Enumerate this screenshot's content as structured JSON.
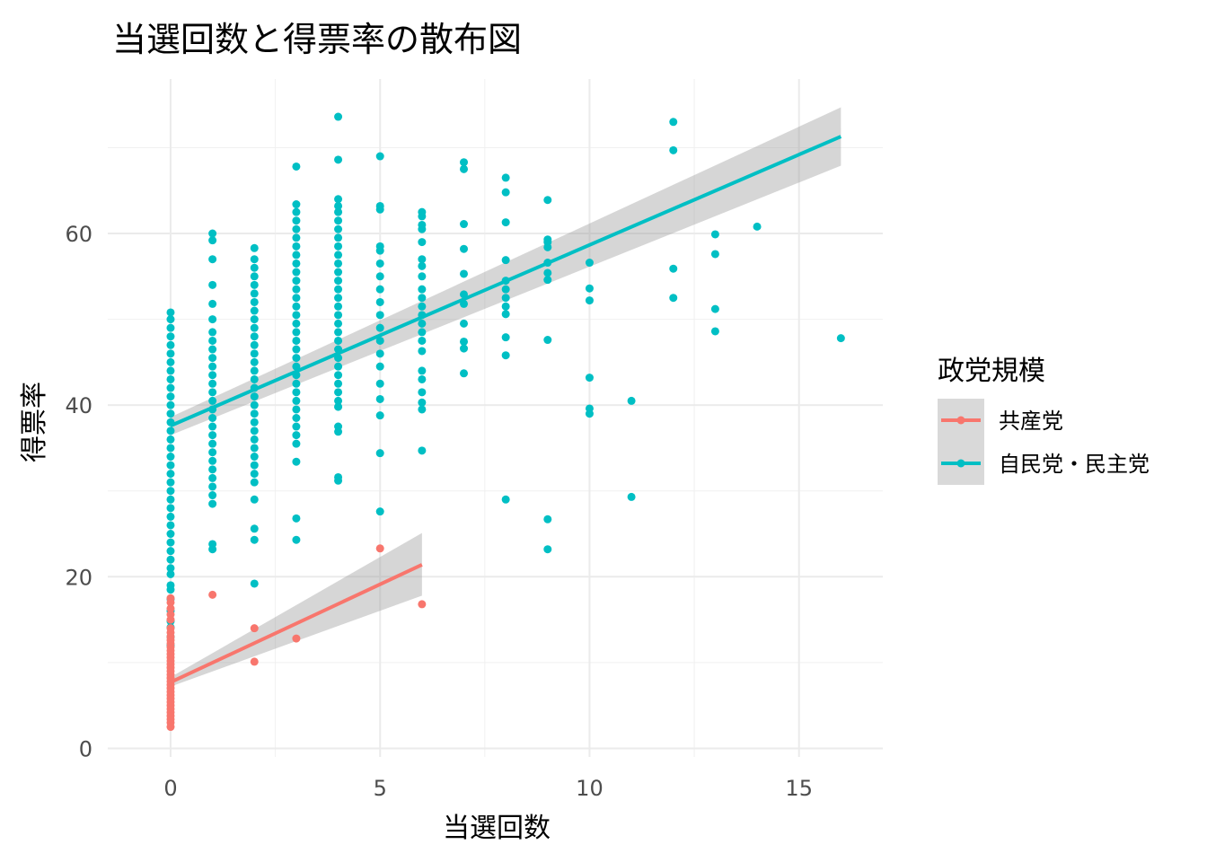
{
  "chart_data": {
    "type": "scatter",
    "title": "当選回数と得票率の散布図",
    "xlabel": "当選回数",
    "ylabel": "得票率",
    "xlim": [
      -1.5,
      17.0
    ],
    "ylim": [
      -1.0,
      78.0
    ],
    "x_ticks": [
      0,
      5,
      10,
      15
    ],
    "y_ticks": [
      0,
      20,
      40,
      60
    ],
    "x_tick_labels": [
      "0",
      "5",
      "10",
      "15"
    ],
    "y_tick_labels": [
      "0",
      "20",
      "40",
      "60"
    ],
    "grid": true,
    "legend": {
      "title": "政党規模",
      "position": "right"
    },
    "series": [
      {
        "name": "共産党",
        "color": "#F8766D",
        "points": [
          [
            0,
            2.5
          ],
          [
            0,
            3.0
          ],
          [
            0,
            3.4
          ],
          [
            0,
            3.8
          ],
          [
            0,
            4.2
          ],
          [
            0,
            4.6
          ],
          [
            0,
            5.0
          ],
          [
            0,
            5.4
          ],
          [
            0,
            5.8
          ],
          [
            0,
            6.2
          ],
          [
            0,
            6.6
          ],
          [
            0,
            7.0
          ],
          [
            0,
            7.4
          ],
          [
            0,
            7.8
          ],
          [
            0,
            8.2
          ],
          [
            0,
            8.6
          ],
          [
            0,
            9.0
          ],
          [
            0,
            9.4
          ],
          [
            0,
            9.8
          ],
          [
            0,
            10.2
          ],
          [
            0,
            10.6
          ],
          [
            0,
            11.0
          ],
          [
            0,
            11.4
          ],
          [
            0,
            11.8
          ],
          [
            0,
            12.2
          ],
          [
            0,
            12.6
          ],
          [
            0,
            13.0
          ],
          [
            0,
            13.5
          ],
          [
            0,
            14.0
          ],
          [
            0,
            15.0
          ],
          [
            0,
            15.6
          ],
          [
            0,
            16.3
          ],
          [
            0,
            17.0
          ],
          [
            0,
            17.5
          ],
          [
            1,
            17.9
          ],
          [
            2,
            14.0
          ],
          [
            2,
            10.1
          ],
          [
            3,
            12.8
          ],
          [
            5,
            23.3
          ],
          [
            6,
            16.8
          ]
        ],
        "fit": {
          "x": [
            0,
            6
          ],
          "y": [
            7.7,
            21.4
          ],
          "ci_lower": [
            7.2,
            17.8
          ],
          "ci_upper": [
            8.3,
            25.1
          ]
        }
      },
      {
        "name": "自民党・民主党",
        "color": "#00BFC4",
        "points": [
          [
            0,
            12.0
          ],
          [
            0,
            13.0
          ],
          [
            0,
            14.1
          ],
          [
            0,
            14.8
          ],
          [
            0,
            16.0
          ],
          [
            0,
            17.4
          ],
          [
            0,
            18.5
          ],
          [
            0,
            19.0
          ],
          [
            0,
            20.3
          ],
          [
            0,
            21.0
          ],
          [
            0,
            22.0
          ],
          [
            0,
            23.0
          ],
          [
            0,
            24.0
          ],
          [
            0,
            25.0
          ],
          [
            0,
            26.0
          ],
          [
            0,
            27.0
          ],
          [
            0,
            28.0
          ],
          [
            0,
            29.0
          ],
          [
            0,
            30.0
          ],
          [
            0,
            31.0
          ],
          [
            0,
            32.0
          ],
          [
            0,
            33.0
          ],
          [
            0,
            34.0
          ],
          [
            0,
            35.0
          ],
          [
            0,
            36.0
          ],
          [
            0,
            37.0
          ],
          [
            0,
            38.0
          ],
          [
            0,
            39.0
          ],
          [
            0,
            40.0
          ],
          [
            0,
            41.0
          ],
          [
            0,
            42.0
          ],
          [
            0,
            43.0
          ],
          [
            0,
            44.0
          ],
          [
            0,
            45.0
          ],
          [
            0,
            46.0
          ],
          [
            0,
            47.0
          ],
          [
            0,
            48.0
          ],
          [
            0,
            49.0
          ],
          [
            0,
            50.0
          ],
          [
            0,
            50.8
          ],
          [
            1,
            23.2
          ],
          [
            1,
            23.8
          ],
          [
            1,
            28.5
          ],
          [
            1,
            29.5
          ],
          [
            1,
            30.5
          ],
          [
            1,
            31.5
          ],
          [
            1,
            32.5
          ],
          [
            1,
            33.5
          ],
          [
            1,
            34.5
          ],
          [
            1,
            35.5
          ],
          [
            1,
            36.5
          ],
          [
            1,
            37.5
          ],
          [
            1,
            38.5
          ],
          [
            1,
            39.5
          ],
          [
            1,
            40.5
          ],
          [
            1,
            41.5
          ],
          [
            1,
            42.5
          ],
          [
            1,
            43.5
          ],
          [
            1,
            44.5
          ],
          [
            1,
            45.5
          ],
          [
            1,
            46.5
          ],
          [
            1,
            47.5
          ],
          [
            1,
            48.5
          ],
          [
            1,
            50.0
          ],
          [
            1,
            51.8
          ],
          [
            1,
            54.0
          ],
          [
            1,
            57.0
          ],
          [
            1,
            59.2
          ],
          [
            1,
            60.0
          ],
          [
            2,
            19.2
          ],
          [
            2,
            24.3
          ],
          [
            2,
            25.6
          ],
          [
            2,
            29.0
          ],
          [
            2,
            31.0
          ],
          [
            2,
            32.0
          ],
          [
            2,
            33.0
          ],
          [
            2,
            34.0
          ],
          [
            2,
            35.0
          ],
          [
            2,
            36.0
          ],
          [
            2,
            37.0
          ],
          [
            2,
            38.0
          ],
          [
            2,
            39.0
          ],
          [
            2,
            40.0
          ],
          [
            2,
            41.0
          ],
          [
            2,
            42.0
          ],
          [
            2,
            43.0
          ],
          [
            2,
            44.0
          ],
          [
            2,
            45.0
          ],
          [
            2,
            46.0
          ],
          [
            2,
            47.0
          ],
          [
            2,
            48.0
          ],
          [
            2,
            49.0
          ],
          [
            2,
            50.0
          ],
          [
            2,
            51.0
          ],
          [
            2,
            52.0
          ],
          [
            2,
            53.0
          ],
          [
            2,
            54.0
          ],
          [
            2,
            55.0
          ],
          [
            2,
            56.0
          ],
          [
            2,
            57.0
          ],
          [
            2,
            58.3
          ],
          [
            3,
            24.3
          ],
          [
            3,
            26.8
          ],
          [
            3,
            33.4
          ],
          [
            3,
            35.5
          ],
          [
            3,
            36.5
          ],
          [
            3,
            37.5
          ],
          [
            3,
            38.5
          ],
          [
            3,
            39.5
          ],
          [
            3,
            40.5
          ],
          [
            3,
            41.5
          ],
          [
            3,
            42.5
          ],
          [
            3,
            43.5
          ],
          [
            3,
            44.5
          ],
          [
            3,
            45.5
          ],
          [
            3,
            46.5
          ],
          [
            3,
            47.5
          ],
          [
            3,
            48.5
          ],
          [
            3,
            49.5
          ],
          [
            3,
            50.5
          ],
          [
            3,
            51.5
          ],
          [
            3,
            52.5
          ],
          [
            3,
            53.5
          ],
          [
            3,
            54.5
          ],
          [
            3,
            55.5
          ],
          [
            3,
            56.5
          ],
          [
            3,
            57.5
          ],
          [
            3,
            58.5
          ],
          [
            3,
            59.5
          ],
          [
            3,
            60.5
          ],
          [
            3,
            61.5
          ],
          [
            3,
            62.5
          ],
          [
            3,
            63.4
          ],
          [
            3,
            67.8
          ],
          [
            4,
            31.2
          ],
          [
            4,
            31.6
          ],
          [
            4,
            36.9
          ],
          [
            4,
            37.5
          ],
          [
            4,
            39.8
          ],
          [
            4,
            40.5
          ],
          [
            4,
            41.5
          ],
          [
            4,
            42.5
          ],
          [
            4,
            43.5
          ],
          [
            4,
            44.5
          ],
          [
            4,
            45.5
          ],
          [
            4,
            46.5
          ],
          [
            4,
            47.5
          ],
          [
            4,
            48.5
          ],
          [
            4,
            49.5
          ],
          [
            4,
            50.5
          ],
          [
            4,
            51.5
          ],
          [
            4,
            52.5
          ],
          [
            4,
            53.5
          ],
          [
            4,
            54.5
          ],
          [
            4,
            55.5
          ],
          [
            4,
            56.5
          ],
          [
            4,
            57.5
          ],
          [
            4,
            58.5
          ],
          [
            4,
            59.5
          ],
          [
            4,
            60.5
          ],
          [
            4,
            61.5
          ],
          [
            4,
            62.5
          ],
          [
            4,
            63.2
          ],
          [
            4,
            64.0
          ],
          [
            4,
            68.6
          ],
          [
            4,
            73.6
          ],
          [
            5,
            27.6
          ],
          [
            5,
            34.4
          ],
          [
            5,
            38.8
          ],
          [
            5,
            40.7
          ],
          [
            5,
            42.5
          ],
          [
            5,
            44.5
          ],
          [
            5,
            46.0
          ],
          [
            5,
            47.5
          ],
          [
            5,
            49.0
          ],
          [
            5,
            50.5
          ],
          [
            5,
            52.0
          ],
          [
            5,
            53.5
          ],
          [
            5,
            55.0
          ],
          [
            5,
            56.5
          ],
          [
            5,
            58.0
          ],
          [
            5,
            58.5
          ],
          [
            5,
            62.8
          ],
          [
            5,
            63.2
          ],
          [
            5,
            69.0
          ],
          [
            6,
            34.7
          ],
          [
            6,
            39.5
          ],
          [
            6,
            40.3
          ],
          [
            6,
            41.5
          ],
          [
            6,
            43.0
          ],
          [
            6,
            44.0
          ],
          [
            6,
            46.3
          ],
          [
            6,
            47.5
          ],
          [
            6,
            48.5
          ],
          [
            6,
            49.5
          ],
          [
            6,
            50.5
          ],
          [
            6,
            51.5
          ],
          [
            6,
            52.5
          ],
          [
            6,
            53.5
          ],
          [
            6,
            55.0
          ],
          [
            6,
            56.2
          ],
          [
            6,
            57.0
          ],
          [
            6,
            59.0
          ],
          [
            6,
            60.5
          ],
          [
            6,
            61.0
          ],
          [
            6,
            62.0
          ],
          [
            6,
            62.5
          ],
          [
            7,
            43.7
          ],
          [
            7,
            46.6
          ],
          [
            7,
            47.4
          ],
          [
            7,
            49.5
          ],
          [
            7,
            51.8
          ],
          [
            7,
            52.9
          ],
          [
            7,
            55.3
          ],
          [
            7,
            58.2
          ],
          [
            7,
            61.1
          ],
          [
            7,
            67.5
          ],
          [
            7,
            68.3
          ],
          [
            8,
            29.0
          ],
          [
            8,
            45.8
          ],
          [
            8,
            47.9
          ],
          [
            8,
            50.6
          ],
          [
            8,
            51.5
          ],
          [
            8,
            52.5
          ],
          [
            8,
            53.5
          ],
          [
            8,
            54.5
          ],
          [
            8,
            56.9
          ],
          [
            8,
            61.3
          ],
          [
            8,
            64.8
          ],
          [
            8,
            66.5
          ],
          [
            9,
            23.2
          ],
          [
            9,
            26.7
          ],
          [
            9,
            47.6
          ],
          [
            9,
            54.6
          ],
          [
            9,
            55.4
          ],
          [
            9,
            56.6
          ],
          [
            9,
            58.4
          ],
          [
            9,
            59.0
          ],
          [
            9,
            59.3
          ],
          [
            9,
            63.9
          ],
          [
            10,
            39.0
          ],
          [
            10,
            39.6
          ],
          [
            10,
            43.2
          ],
          [
            10,
            52.2
          ],
          [
            10,
            53.6
          ],
          [
            10,
            56.6
          ],
          [
            11,
            29.3
          ],
          [
            11,
            40.5
          ],
          [
            12,
            52.5
          ],
          [
            12,
            55.9
          ],
          [
            12,
            69.7
          ],
          [
            12,
            73.0
          ],
          [
            13,
            48.6
          ],
          [
            13,
            51.2
          ],
          [
            13,
            57.6
          ],
          [
            13,
            59.9
          ],
          [
            14,
            60.8
          ],
          [
            16,
            47.8
          ]
        ],
        "fit": {
          "x": [
            0,
            16
          ],
          "y": [
            37.6,
            71.3
          ],
          "ci_lower": [
            36.5,
            67.9
          ],
          "ci_upper": [
            38.6,
            74.7
          ]
        }
      }
    ]
  }
}
